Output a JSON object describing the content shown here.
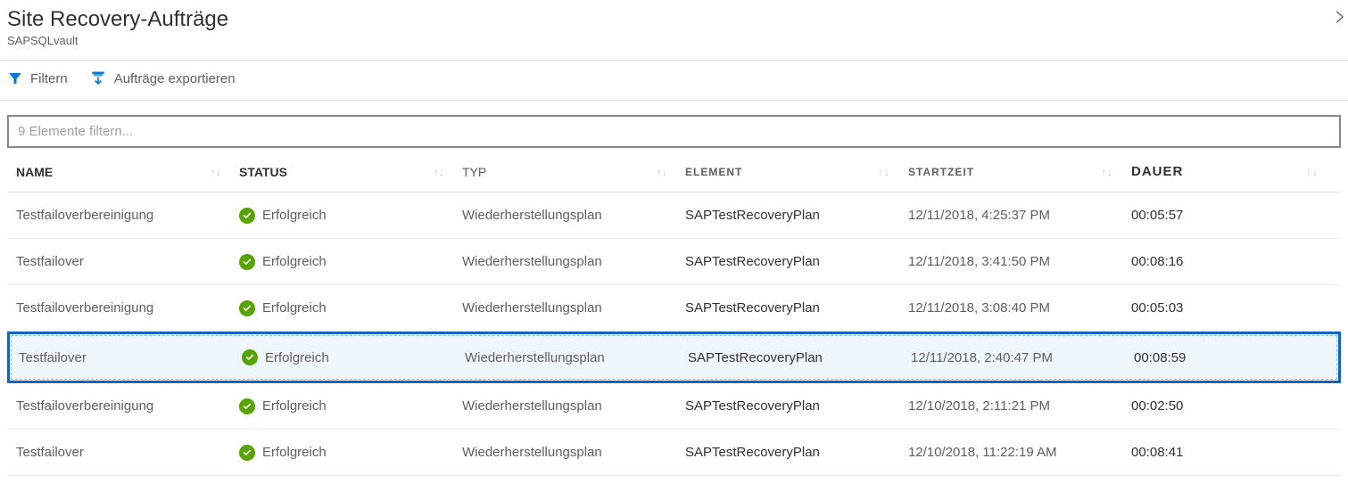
{
  "header": {
    "title": "Site Recovery-Aufträge",
    "subtitle": "SAPSQLvault"
  },
  "toolbar": {
    "filter_label": "Filtern",
    "export_label": "Aufträge exportieren"
  },
  "filter": {
    "placeholder": "9 Elemente filtern..."
  },
  "columns": {
    "name": "NAME",
    "status": "STATUS",
    "typ": "TYP",
    "element": "ELEMENT",
    "startzeit": "STARTZEIT",
    "dauer": "DAUER"
  },
  "status_label": "Erfolgreich",
  "rows": [
    {
      "name": "Testfailoverbereinigung",
      "typ": "Wiederherstellungsplan",
      "element": "SAPTestRecoveryPlan",
      "start": "12/11/2018, 4:25:37 PM",
      "dauer": "00:05:57",
      "selected": false
    },
    {
      "name": "Testfailover",
      "typ": "Wiederherstellungsplan",
      "element": "SAPTestRecoveryPlan",
      "start": "12/11/2018, 3:41:50 PM",
      "dauer": "00:08:16",
      "selected": false
    },
    {
      "name": "Testfailoverbereinigung",
      "typ": "Wiederherstellungsplan",
      "element": "SAPTestRecoveryPlan",
      "start": "12/11/2018, 3:08:40 PM",
      "dauer": "00:05:03",
      "selected": false
    },
    {
      "name": "Testfailover",
      "typ": "Wiederherstellungsplan",
      "element": "SAPTestRecoveryPlan",
      "start": "12/11/2018, 2:40:47 PM",
      "dauer": "00:08:59",
      "selected": true
    },
    {
      "name": "Testfailoverbereinigung",
      "typ": "Wiederherstellungsplan",
      "element": "SAPTestRecoveryPlan",
      "start": "12/10/2018, 2:11:21 PM",
      "dauer": "00:02:50",
      "selected": false
    },
    {
      "name": "Testfailover",
      "typ": "Wiederherstellungsplan",
      "element": "SAPTestRecoveryPlan",
      "start": "12/10/2018, 11:22:19 AM",
      "dauer": "00:08:41",
      "selected": false
    }
  ],
  "colors": {
    "accent_blue": "#0078d4",
    "success_green": "#57a300",
    "selected_border": "#1664ba",
    "selected_bg": "#eff6fc",
    "text_primary": "#323130",
    "text_secondary": "#605e5c",
    "border": "#e1dfdd"
  }
}
